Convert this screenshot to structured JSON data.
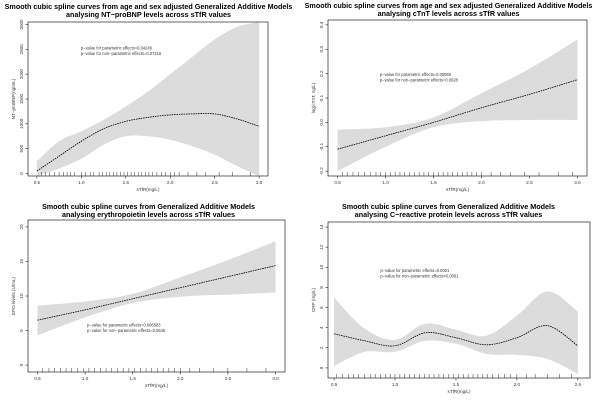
{
  "chart_data": [
    {
      "type": "line",
      "title": "Smooth cubic spline curves from age and sex adjusted Generalized Additive Models analysing NT−proBNP levels across sTfR values",
      "title_lines": [
        "Smooth cubic spline curves from age and sex adjusted Generalized Additive Models",
        "analysing NT−proBNP levels across sTfR values"
      ],
      "xlabel": "sTfR(mg/L)",
      "ylabel": "NT−proBNP(ng/mL)",
      "xlim": [
        0.4,
        3.1
      ],
      "ylim": [
        -50,
        3050
      ],
      "xticks": [
        0.5,
        1.0,
        1.5,
        2.0,
        2.5,
        3.0
      ],
      "xtick_labels": [
        "0.5",
        "1.0",
        "1.5",
        "2.0",
        "2.5",
        "3.0"
      ],
      "yticks": [
        0,
        500,
        1000,
        1500,
        2000,
        2500,
        3000
      ],
      "ytick_labels": [
        "0",
        "500",
        "1000",
        "1500",
        "2000",
        "2500",
        "3000"
      ],
      "annotations": [
        "p−value for parametric effects=0.04249",
        "p−value for non−parametric effects=0.07216"
      ],
      "series": [
        {
          "x": [
            0.5,
            0.75,
            1.0,
            1.25,
            1.5,
            1.75,
            2.0,
            2.25,
            2.5,
            2.75,
            3.0
          ],
          "y": [
            50,
            350,
            650,
            900,
            1050,
            1130,
            1180,
            1200,
            1200,
            1100,
            950
          ],
          "lower": [
            -50,
            100,
            300,
            580,
            750,
            750,
            680,
            550,
            380,
            150,
            -50
          ],
          "upper": [
            250,
            650,
            850,
            1080,
            1350,
            1650,
            2000,
            2350,
            2700,
            2950,
            3050
          ]
        }
      ],
      "rug": [
        0.55,
        0.6,
        0.64,
        0.7,
        0.75,
        0.8,
        0.84,
        0.88,
        0.92,
        1.0,
        1.05,
        1.1,
        1.14,
        1.2,
        1.24,
        1.28,
        1.32,
        1.36,
        1.4,
        1.44,
        1.48,
        1.52,
        1.56,
        1.6,
        1.64,
        1.68,
        1.72,
        1.76,
        1.8,
        1.85,
        1.9,
        1.95,
        2.0,
        2.05,
        2.1,
        2.2,
        2.3,
        2.4,
        2.55,
        2.7,
        2.9
      ]
    },
    {
      "type": "line",
      "title": "Smooth cubic spline curves from age and sex adjusted Generalized Additive Models analysing cTnT levels across sTfR values",
      "title_lines": [
        "Smooth cubic spline curves from age and sex adjusted Generalized Additive Models",
        "analysing cTnT levels across sTfR values"
      ],
      "xlabel": "sTfR(mg/L)",
      "ylabel": "log(cTnT, ng/L)",
      "xlim": [
        0.4,
        3.1
      ],
      "ylim": [
        -0.22,
        0.42
      ],
      "xticks": [
        0.5,
        1.0,
        1.5,
        2.0,
        2.5,
        3.0
      ],
      "xtick_labels": [
        "0.5",
        "1.0",
        "1.5",
        "2.0",
        "2.5",
        "3.0"
      ],
      "yticks": [
        -0.2,
        -0.1,
        0.0,
        0.1,
        0.2,
        0.3,
        0.4
      ],
      "ytick_labels": [
        "-0.2",
        "-0.1",
        "0.0",
        "0.1",
        "0.2",
        "0.3",
        "0.4"
      ],
      "annotations": [
        "p−value for parametric effects=0.00068",
        "p−value for non−parametric effects=0.0628"
      ],
      "series": [
        {
          "x": [
            0.5,
            1.0,
            1.5,
            2.0,
            2.5,
            3.0
          ],
          "y": [
            -0.11,
            -0.055,
            0.0,
            0.06,
            0.115,
            0.175
          ],
          "lower": [
            -0.2,
            -0.1,
            -0.02,
            0.005,
            0.01,
            0.01
          ],
          "upper": [
            -0.03,
            -0.02,
            0.02,
            0.12,
            0.22,
            0.34
          ]
        }
      ],
      "rug": [
        0.55,
        0.6,
        0.66,
        0.72,
        0.78,
        0.84,
        0.9,
        0.95,
        1.0,
        1.05,
        1.1,
        1.15,
        1.2,
        1.25,
        1.3,
        1.35,
        1.4,
        1.45,
        1.5,
        1.55,
        1.6,
        1.65,
        1.7,
        1.75,
        1.8,
        1.85,
        1.9,
        1.95,
        2.0,
        2.1,
        2.2,
        2.3,
        2.45,
        2.6,
        2.8,
        2.95
      ]
    },
    {
      "type": "line",
      "title": "Smooth cubic spline curves from Generalized Additive Models analysing erythropoietin levels across sTfR values",
      "title_lines": [
        "Smooth cubic spline curves from Generalized Additive Models",
        "analysing erythropoietin levels across sTfR values"
      ],
      "xlabel": "sTfR(mg/L)",
      "ylabel": "EPO levels (U/mL)",
      "xlim": [
        0.4,
        3.1
      ],
      "ylim": [
        -1,
        21
      ],
      "xticks": [
        0.5,
        1.0,
        1.5,
        2.0,
        2.5,
        3.0
      ],
      "xtick_labels": [
        "0.5",
        "1.0",
        "1.5",
        "2.0",
        "2.5",
        "3.0"
      ],
      "yticks": [
        0,
        5,
        10,
        15,
        20
      ],
      "ytick_labels": [
        "0",
        "5",
        "10",
        "15",
        "20"
      ],
      "annotations": [
        "p−value for parametric effects=0.008583",
        "p−value for non−parametric effects=0.5545"
      ],
      "series": [
        {
          "x": [
            0.5,
            1.0,
            1.5,
            2.0,
            2.5,
            3.0
          ],
          "y": [
            6.5,
            8.0,
            9.6,
            11.2,
            12.8,
            14.4
          ],
          "lower": [
            4.3,
            6.9,
            9.0,
            9.9,
            10.2,
            10.5
          ],
          "upper": [
            8.6,
            9.2,
            10.3,
            12.7,
            15.2,
            17.9
          ]
        }
      ],
      "rug": [
        0.55,
        0.62,
        0.68,
        0.74,
        0.8,
        0.86,
        0.92,
        0.98,
        1.04,
        1.1,
        1.16,
        1.22,
        1.28,
        1.34,
        1.4,
        1.46,
        1.52,
        1.58,
        1.64,
        1.7,
        1.76,
        1.82,
        1.88,
        1.94,
        2.0,
        2.1,
        2.2,
        2.35,
        2.5,
        2.7,
        2.9
      ]
    },
    {
      "type": "line",
      "title": "Smooth cubic spline curves from Generalized Additive Models analysing C−reactive protein levels across sTfR values",
      "title_lines": [
        "Smooth cubic spline curves from Generalized Additive Models",
        "analysing C−reactive protein levels across sTfR values"
      ],
      "xlabel": "sTfR(mg/L)",
      "ylabel": "CRP (mg/L)",
      "xlim": [
        0.45,
        2.6
      ],
      "ylim": [
        -1.0,
        14.5
      ],
      "xticks": [
        0.5,
        1.0,
        1.5,
        2.0,
        2.5
      ],
      "xtick_labels": [
        "0.5",
        "1.0",
        "1.5",
        "2.0",
        "2.5"
      ],
      "yticks": [
        0,
        2,
        4,
        6,
        8,
        10,
        12,
        14
      ],
      "ytick_labels": [
        "0",
        "2",
        "4",
        "6",
        "8",
        "10",
        "12",
        "14"
      ],
      "annotations": [
        "p−value for parametric effects=0.0001",
        "p−value for non−parametric effects<0.0001"
      ],
      "series": [
        {
          "x": [
            0.5,
            0.75,
            1.0,
            1.25,
            1.5,
            1.75,
            2.0,
            2.25,
            2.5
          ],
          "y": [
            3.4,
            2.7,
            2.2,
            3.5,
            3.0,
            2.3,
            3.0,
            4.2,
            2.2
          ],
          "lower": [
            0.2,
            1.6,
            1.6,
            2.7,
            2.4,
            1.4,
            1.3,
            0.9,
            -0.6
          ],
          "upper": [
            7.0,
            3.9,
            2.8,
            4.4,
            3.8,
            3.2,
            5.2,
            7.6,
            5.6
          ]
        }
      ],
      "rug": [
        0.52,
        0.57,
        0.62,
        0.66,
        0.7,
        0.75,
        0.8,
        0.84,
        0.88,
        0.92,
        0.96,
        1.0,
        1.04,
        1.08,
        1.12,
        1.16,
        1.2,
        1.24,
        1.28,
        1.32,
        1.36,
        1.4,
        1.44,
        1.48,
        1.52,
        1.56,
        1.6,
        1.64,
        1.68,
        1.72,
        1.76,
        1.8,
        1.85,
        1.9,
        1.95,
        2.0,
        2.08,
        2.15,
        2.25,
        2.35,
        2.45
      ]
    }
  ],
  "style": {
    "band_color": "#dcdcdc",
    "line_color": "#000000",
    "axis_color": "#000000"
  }
}
